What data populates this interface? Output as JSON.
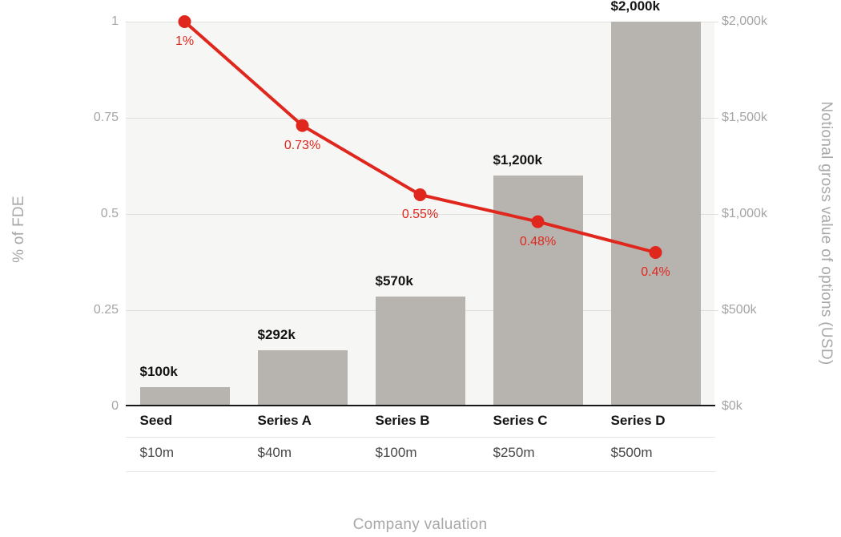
{
  "chart_data": {
    "type": "bar+line",
    "categories": [
      "Seed",
      "Series A",
      "Series B",
      "Series C",
      "Series D"
    ],
    "valuation_row": [
      "$10m",
      "$40m",
      "$100m",
      "$250m",
      "$500m"
    ],
    "series": [
      {
        "name": "Notional gross value of options (USD)",
        "type": "bar",
        "axis": "right",
        "values": [
          100,
          292,
          570,
          1200,
          2000
        ],
        "labels": [
          "$100k",
          "$292k",
          "$570k",
          "$1,200k",
          "$2,000k"
        ],
        "color": "#b7b4b0"
      },
      {
        "name": "% of FDE",
        "type": "line",
        "axis": "left",
        "values": [
          1,
          0.73,
          0.55,
          0.48,
          0.4
        ],
        "labels": [
          "1%",
          "0.73%",
          "0.55%",
          "0.48%",
          "0.4%"
        ],
        "color": "#e0271e"
      }
    ],
    "left_axis": {
      "title": "% of FDE",
      "range": [
        0,
        1
      ],
      "ticks": [
        0,
        0.25,
        0.5,
        0.75,
        1
      ],
      "tick_labels": [
        "0",
        "0.25",
        "0.5",
        "0.75",
        "1"
      ]
    },
    "right_axis": {
      "title": "Notional gross value of options (USD)",
      "range": [
        0,
        2000
      ],
      "ticks": [
        0,
        500,
        1000,
        1500,
        2000
      ],
      "tick_labels": [
        "$0k",
        "$500k",
        "$1,000k",
        "$1,500k",
        "$2,000k"
      ]
    },
    "x_axis": {
      "title": "Company valuation"
    },
    "layout_hints": {
      "grid": true,
      "legend": "none",
      "plot_background": "#f6f6f4",
      "grid_color": "#dededb",
      "tick_color": "#a4a4a4",
      "baseline_color": "#181818"
    }
  }
}
